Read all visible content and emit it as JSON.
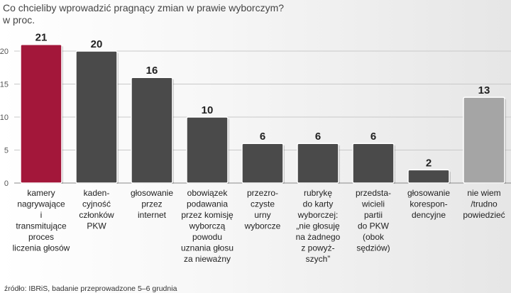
{
  "title_line1": "Co chcieliby wprowadzić pragnący zmian w prawie wyborczym?",
  "title_line2": "w proc.",
  "source": "źródło: IBRiS, badanie przeprowadzone 5–6 grudnia",
  "chart_data": {
    "type": "bar",
    "ylim": [
      0,
      21
    ],
    "yticks": [
      0,
      5,
      10,
      15,
      20
    ],
    "grid": true,
    "categories": [
      [
        "kamery",
        "nagrywające",
        "i",
        "transmitujące",
        "proces",
        "liczenia głosów"
      ],
      [
        "kaden-",
        "cyjność",
        "członków",
        "PKW"
      ],
      [
        "głosowanie",
        "przez",
        "internet"
      ],
      [
        "obowiązek",
        "podawania",
        "przez komisję",
        "wyborczą",
        "powodu",
        "uznania głosu",
        "za nieważny"
      ],
      [
        "przezro-",
        "czyste",
        "urny",
        "wyborcze"
      ],
      [
        "rubrykę",
        "do karty",
        "wyborczej:",
        "„nie głosuję",
        "na żadnego",
        "z powyż-",
        "szych”"
      ],
      [
        "przedsta-",
        "wicieli",
        "partii",
        "do PKW",
        "(obok",
        "sędziów)"
      ],
      [
        "głosowanie",
        "korespon-",
        "dencyjne"
      ],
      [
        "nie wiem",
        "/trudno",
        "powiedzieć"
      ]
    ],
    "values": [
      21,
      20,
      16,
      10,
      6,
      6,
      6,
      2,
      13
    ],
    "value_labels": [
      "21",
      "20",
      "16",
      "10",
      "6",
      "6",
      "6",
      "2",
      "13"
    ],
    "bar_colors": [
      "#a3173a",
      "#4a4a4a",
      "#4a4a4a",
      "#4a4a4a",
      "#4a4a4a",
      "#4a4a4a",
      "#4a4a4a",
      "#4a4a4a",
      "#a5a5a5"
    ]
  }
}
